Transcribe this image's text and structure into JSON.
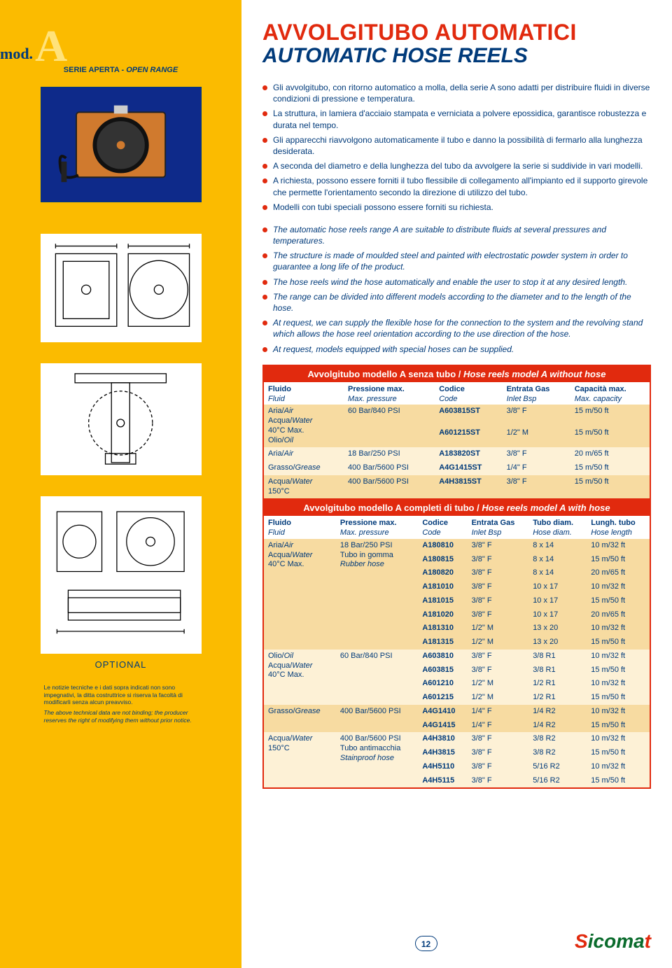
{
  "logo": {
    "mod": "mod.",
    "letter": "A",
    "serie_it": "SERIE APERTA",
    "serie_sep": " - ",
    "serie_en": "OPEN RANGE"
  },
  "title": {
    "it": "AVVOLGITUBO AUTOMATICI",
    "en": "AUTOMATIC HOSE REELS"
  },
  "bullets_it": [
    "Gli avvolgitubo, con ritorno automatico a molla, della serie A sono adatti per distribuire fluidi in diverse condizioni di pressione e temperatura.",
    "La struttura, in lamiera d'acciaio stampata e verniciata a polvere epossidica, garantisce robustezza e durata nel tempo.",
    "Gli apparecchi riavvolgono automaticamente il tubo e danno la possibilità di fermarlo alla lunghezza desiderata.",
    "A seconda del diametro e della lunghezza del tubo da avvolgere la serie si suddivide in vari modelli.",
    "A richiesta, possono essere forniti il tubo flessibile di collegamento all'impianto ed il supporto girevole che permette l'orientamento secondo la direzione di utilizzo del tubo.",
    "Modelli con tubi speciali possono essere forniti su richiesta."
  ],
  "bullets_en": [
    "The automatic hose reels range A are suitable to distribute fluids at several pressures and temperatures.",
    "The structure is made of moulded steel and painted with electrostatic powder system in order to guarantee a long life of the product.",
    "The hose reels wind the hose automatically and enable the user to stop it at any desired length.",
    "The range can be divided into different models according to the diameter and to the length of the hose.",
    "At request, we can supply the flexible hose for the connection to the system and the revolving stand which allows the hose reel orientation according to the use direction of the hose.",
    "At request, models equipped with special hoses can be supplied."
  ],
  "optional": "OPTIONAL",
  "fineprint": {
    "it": "Le notizie tecniche e i dati sopra indicati non sono impegnativi, la ditta costruttrice si riserva la facoltà di modificarli senza alcun preavviso.",
    "en": "The above technical data are not binding; the producer reserves the right of modifying them without prior notice."
  },
  "table1": {
    "title_it": "Avvolgitubo modello A senza tubo",
    "title_sep": " / ",
    "title_en": "Hose reels model A without hose",
    "cols": [
      {
        "it": "Fluido",
        "en": "Fluid"
      },
      {
        "it": "Pressione max.",
        "en": "Max. pressure"
      },
      {
        "it": "Codice",
        "en": "Code"
      },
      {
        "it": "Entrata Gas",
        "en": "Inlet Bsp"
      },
      {
        "it": "Capacità max.",
        "en": "Max. capacity"
      }
    ],
    "rows": [
      {
        "fluid": "Aria/Air\nAcqua/Water\n40°C Max.\nOlio/Oil",
        "press": "60 Bar/840 PSI",
        "codes": [
          "A603815ST",
          "A601215ST"
        ],
        "inlet": [
          "3/8\" F",
          "1/2\" M"
        ],
        "cap": [
          "15 m/50 ft",
          "15 m/50 ft"
        ],
        "cls": "o"
      },
      {
        "fluid": "Aria/Air",
        "press": "18 Bar/250 PSI",
        "codes": [
          "A183820ST"
        ],
        "inlet": [
          "3/8\" F"
        ],
        "cap": [
          "20 m/65 ft"
        ],
        "cls": "e"
      },
      {
        "fluid": "Grasso/Grease",
        "press": "400 Bar/5600 PSI",
        "codes": [
          "A4G1415ST"
        ],
        "inlet": [
          "1/4\" F"
        ],
        "cap": [
          "15 m/50 ft"
        ],
        "cls": "e"
      },
      {
        "fluid": "Acqua/Water\n150°C",
        "press": "400 Bar/5600 PSI",
        "codes": [
          "A4H3815ST"
        ],
        "inlet": [
          "3/8\" F"
        ],
        "cap": [
          "15 m/50 ft"
        ],
        "cls": "o"
      }
    ]
  },
  "table2": {
    "title_it": "Avvolgitubo modello A completi di tubo",
    "title_sep": " / ",
    "title_en": "Hose reels model A with hose",
    "cols": [
      {
        "it": "Fluido",
        "en": "Fluid"
      },
      {
        "it": "Pressione max.",
        "en": "Max. pressure"
      },
      {
        "it": "Codice",
        "en": "Code"
      },
      {
        "it": "Entrata Gas",
        "en": "Inlet Bsp"
      },
      {
        "it": "Tubo diam.",
        "en": "Hose diam."
      },
      {
        "it": "Lungh. tubo",
        "en": "Hose length"
      }
    ],
    "groups": [
      {
        "cls": "o",
        "fluid": "Aria/Air\nAcqua/Water\n40°C Max.",
        "press": "18 Bar/250 PSI\nTubo in gomma",
        "press_en": "Rubber hose",
        "rows": [
          [
            "A180810",
            "3/8\" F",
            "8 x 14",
            "10 m/32 ft"
          ],
          [
            "A180815",
            "3/8\" F",
            "8 x 14",
            "15 m/50 ft"
          ],
          [
            "A180820",
            "3/8\" F",
            "8 x 14",
            "20 m/65 ft"
          ],
          [
            "A181010",
            "3/8\" F",
            "10 x 17",
            "10 m/32 ft"
          ],
          [
            "A181015",
            "3/8\" F",
            "10 x 17",
            "15 m/50 ft"
          ],
          [
            "A181020",
            "3/8\" F",
            "10 x 17",
            "20 m/65 ft"
          ],
          [
            "A181310",
            "1/2\" M",
            "13 x 20",
            "10 m/32 ft"
          ],
          [
            "A181315",
            "1/2\" M",
            "13 x 20",
            "15 m/50 ft"
          ]
        ]
      },
      {
        "cls": "e",
        "fluid": "Olio/Oil\nAcqua/Water\n40°C Max.",
        "press": "60 Bar/840 PSI",
        "rows": [
          [
            "A603810",
            "3/8\" F",
            "3/8 R1",
            "10 m/32 ft"
          ],
          [
            "A603815",
            "3/8\" F",
            "3/8 R1",
            "15 m/50 ft"
          ],
          [
            "A601210",
            "1/2\" M",
            "1/2 R1",
            "10 m/32 ft"
          ],
          [
            "A601215",
            "1/2\" M",
            "1/2 R1",
            "15 m/50 ft"
          ]
        ]
      },
      {
        "cls": "o",
        "fluid": "Grasso/Grease",
        "press": "400 Bar/5600 PSI",
        "rows": [
          [
            "A4G1410",
            "1/4\" F",
            "1/4 R2",
            "10 m/32 ft"
          ],
          [
            "A4G1415",
            "1/4\" F",
            "1/4 R2",
            "15 m/50 ft"
          ]
        ]
      },
      {
        "cls": "e",
        "fluid": "Acqua/Water\n150°C",
        "press": "400 Bar/5600 PSI\nTubo antimacchia",
        "press_en": "Stainproof hose",
        "rows": [
          [
            "A4H3810",
            "3/8\" F",
            "3/8 R2",
            "10 m/32 ft"
          ],
          [
            "A4H3815",
            "3/8\" F",
            "3/8 R2",
            "15 m/50 ft"
          ],
          [
            "A4H5110",
            "3/8\" F",
            "5/16 R2",
            "10 m/32 ft"
          ],
          [
            "A4H5115",
            "3/8\" F",
            "5/16 R2",
            "15 m/50 ft"
          ]
        ]
      }
    ]
  },
  "page_number": "12",
  "brand": "Sicomat",
  "colors": {
    "yellow": "#fbbb00",
    "red": "#e12a0e",
    "blue": "#003a7a",
    "row_odd": "#f7dba1",
    "row_even": "#fdf1d6",
    "green": "#0a6b2c"
  }
}
